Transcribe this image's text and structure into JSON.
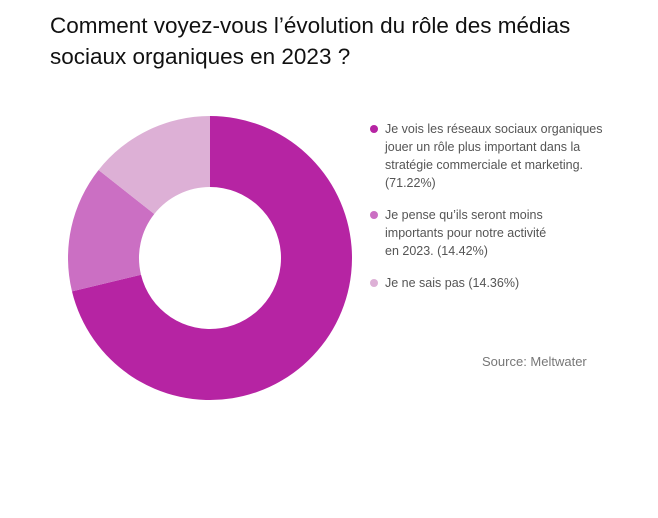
{
  "header": {
    "title_line1": "Comment voyez-vous l’évolution du rôle des médias",
    "title_line2": "sociaux organiques en 2023 ?"
  },
  "chart_data": {
    "type": "pie",
    "variant": "donut",
    "title": "Comment voyez-vous l’évolution du rôle des médias sociaux organiques en 2023 ?",
    "legend_position": "right",
    "series": [
      {
        "label": "Je vois les réseaux sociaux organiques jouer un rôle plus important dans la stratégie commerciale et marketing. (71.22%)",
        "lines": [
          "Je vois les réseaux sociaux organiques",
          "jouer un rôle plus important dans la",
          "stratégie commerciale et marketing.",
          "(71.22%)"
        ],
        "value": 71.22,
        "color": "#b624a3"
      },
      {
        "label": "Je pense qu’ils seront moins importants pour notre activité en 2023. (14.42%)",
        "lines": [
          "Je pense qu’ils seront moins",
          "importants pour notre activité",
          "en 2023. (14.42%)"
        ],
        "value": 14.42,
        "color": "#cb6fc3"
      },
      {
        "label": "Je ne sais pas (14.36%)",
        "lines": [
          "Je ne sais pas (14.36%)"
        ],
        "value": 14.36,
        "color": "#ddb0d6"
      }
    ]
  },
  "footer": {
    "source": "Source: Meltwater"
  }
}
